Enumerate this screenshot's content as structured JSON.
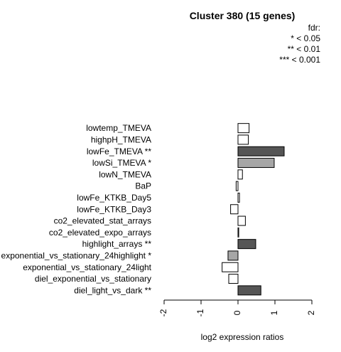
{
  "chart_data": {
    "type": "bar",
    "orientation": "horizontal",
    "title": "Cluster 380 (15 genes)",
    "xlabel": "log2 expression ratios",
    "ylabel": "",
    "xlim": [
      -2,
      2
    ],
    "xticks": [
      "-2",
      "-1",
      "0",
      "1",
      "2"
    ],
    "legend": {
      "position": "top-right",
      "lines": [
        "fdr:",
        "* < 0.05",
        "** < 0.01",
        "*** < 0.001"
      ]
    },
    "categories": [
      "lowtemp_TMEVA",
      "highpH_TMEVA",
      "lowFe_TMEVA **",
      "lowSi_TMEVA *",
      "lowN_TMEVA",
      "BaP",
      "lowFe_KTKB_Day5",
      "lowFe_KTKB_Day3",
      "co2_elevated_stat_arrays",
      "co2_elevated_expo_arrays",
      "highlight_arrays **",
      "exponential_vs_stationary_24highlight *",
      "exponential_vs_stationary_24light",
      "diel_exponential_vs_stationary",
      "diel_light_vs_dark **"
    ],
    "values": [
      0.3,
      0.28,
      1.25,
      0.98,
      0.12,
      -0.05,
      0.04,
      -0.2,
      0.2,
      0.02,
      0.48,
      -0.27,
      -0.43,
      -0.25,
      0.62
    ],
    "significance": [
      "",
      "",
      "**",
      "*",
      "",
      "",
      "",
      "",
      "",
      "",
      "**",
      "*",
      "",
      "",
      "**"
    ],
    "colors": {
      "none": "#ffffff",
      "*": "#a6a6a6",
      "**": "#555555",
      "***": "#000000",
      "stroke": "#000000"
    }
  }
}
